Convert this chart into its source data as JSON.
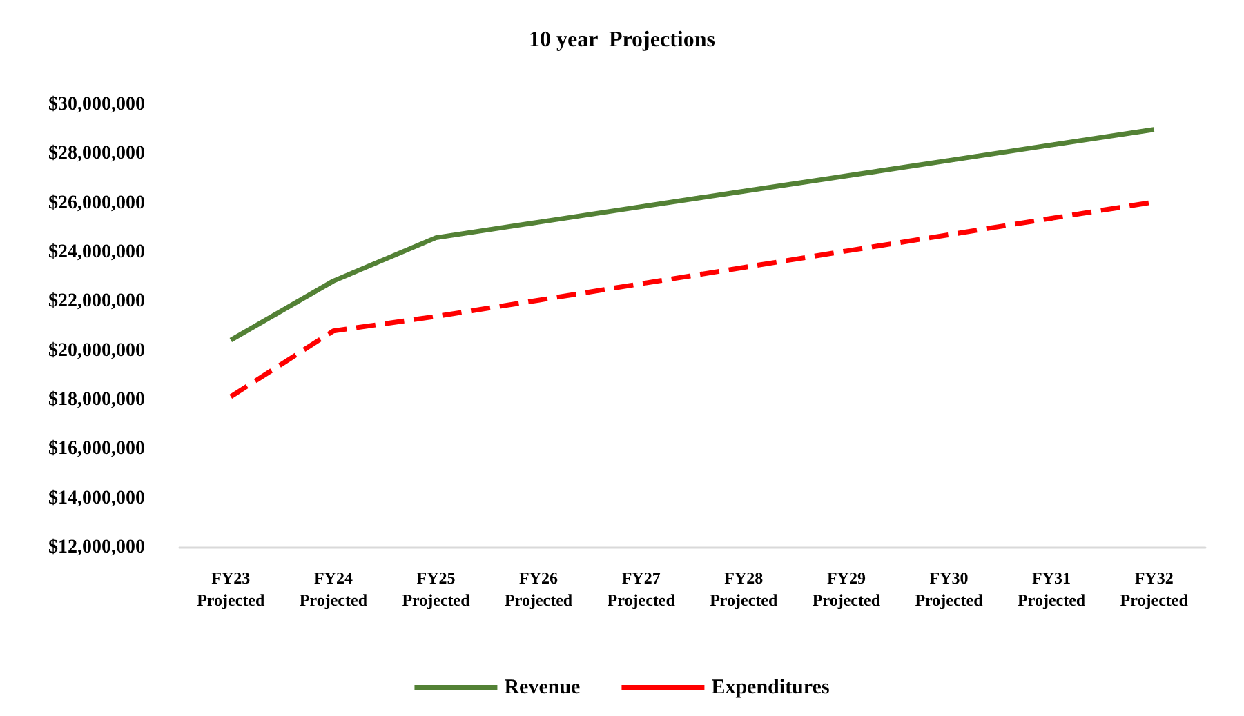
{
  "chart_data": {
    "type": "line",
    "title": "10 year  Projections",
    "categories": [
      "FY23\nProjected",
      "FY24\nProjected",
      "FY25\nProjected",
      "FY26\nProjected",
      "FY27\nProjected",
      "FY28\nProjected",
      "FY29\nProjected",
      "FY30\nProjected",
      "FY31\nProjected",
      "FY32\nProjected"
    ],
    "series": [
      {
        "name": "Revenue",
        "color": "#538135",
        "line_style": "solid",
        "values": [
          20440000,
          22840000,
          24600000,
          25230000,
          25860000,
          26490000,
          27110000,
          27740000,
          28370000,
          29000000
        ]
      },
      {
        "name": "Expenditures",
        "color": "#ff0000",
        "line_style": "dashed",
        "values": [
          18140000,
          20810000,
          21400000,
          22060000,
          22730000,
          23390000,
          24060000,
          24720000,
          25390000,
          26050000
        ]
      }
    ],
    "ylim": [
      12000000,
      30000000
    ],
    "yticks": [
      {
        "value": 12000000,
        "label": "$12,000,000"
      },
      {
        "value": 14000000,
        "label": "$14,000,000"
      },
      {
        "value": 16000000,
        "label": "$16,000,000"
      },
      {
        "value": 18000000,
        "label": "$18,000,000"
      },
      {
        "value": 20000000,
        "label": "$20,000,000"
      },
      {
        "value": 22000000,
        "label": "$22,000,000"
      },
      {
        "value": 24000000,
        "label": "$24,000,000"
      },
      {
        "value": 26000000,
        "label": "$26,000,000"
      },
      {
        "value": 28000000,
        "label": "$28,000,000"
      },
      {
        "value": 30000000,
        "label": "$30,000,000"
      }
    ],
    "grid": false,
    "legend": "bottom",
    "marker": "none"
  }
}
